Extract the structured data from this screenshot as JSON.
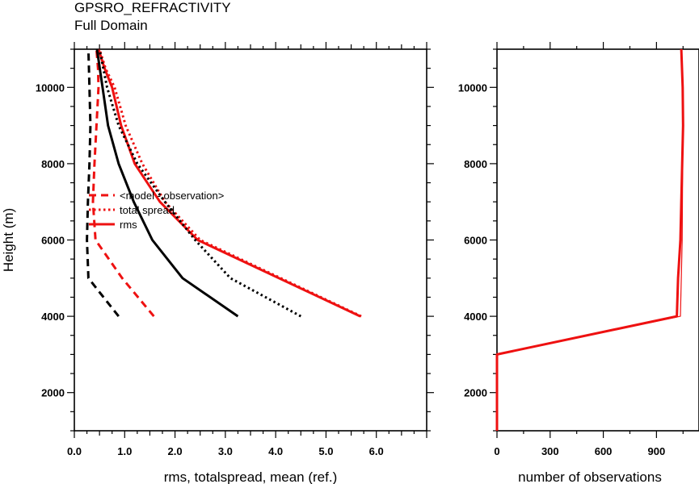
{
  "header": {
    "title": "GPSRO_REFRACTIVITY",
    "subtitle": "Full Domain"
  },
  "colors": {
    "red": "#ee1111",
    "black": "#000000"
  },
  "chart_data": [
    {
      "type": "line",
      "xlabel": "rms, totalspread, mean (ref.)",
      "ylabel": "Height (m)",
      "xlim": [
        0,
        7
      ],
      "ylim": [
        1000,
        11000
      ],
      "x_ticks": [
        "0.0",
        "1.0",
        "2.0",
        "3.0",
        "4.0",
        "5.0",
        "6.0"
      ],
      "y_ticks": [
        "2000",
        "4000",
        "6000",
        "8000",
        "10000"
      ],
      "legend": {
        "placement": "center-left",
        "entries": [
          "<model - observation>",
          "total spread",
          "rms"
        ]
      },
      "series": [
        {
          "name": "<model - observation>",
          "color": "red",
          "style": "dashed",
          "x": [
            1.58,
            0.95,
            0.42,
            0.37,
            0.4,
            0.44,
            0.48,
            0.47,
            0.44
          ],
          "y": [
            4000,
            5000,
            6000,
            7000,
            8000,
            9000,
            10000,
            10500,
            11000
          ]
        },
        {
          "name": "total spread",
          "color": "red",
          "style": "dotted",
          "x": [
            5.7,
            2.5,
            1.8,
            1.35,
            1.02,
            0.8,
            0.62,
            0.5
          ],
          "y": [
            4000,
            6000,
            7000,
            8000,
            9000,
            10000,
            10500,
            11000
          ]
        },
        {
          "name": "rms",
          "color": "red",
          "style": "solid",
          "x": [
            5.68,
            2.45,
            1.7,
            1.2,
            0.93,
            0.75,
            0.6,
            0.48
          ],
          "y": [
            4000,
            6000,
            7000,
            8000,
            9000,
            10000,
            10500,
            11000
          ]
        },
        {
          "color": "black",
          "style": "dashed",
          "x": [
            0.88,
            0.28,
            0.25,
            0.27,
            0.3,
            0.32,
            0.3,
            0.28
          ],
          "y": [
            4000,
            5000,
            6000,
            7000,
            8000,
            9000,
            10000,
            11000
          ]
        },
        {
          "color": "black",
          "style": "dotted",
          "x": [
            4.5,
            3.1,
            2.4,
            1.8,
            1.25,
            0.88,
            0.65,
            0.5
          ],
          "y": [
            4000,
            5000,
            6000,
            7000,
            8000,
            9000,
            10000,
            11000
          ]
        },
        {
          "color": "black",
          "style": "solid",
          "x": [
            3.25,
            2.15,
            1.55,
            1.18,
            0.88,
            0.67,
            0.56,
            0.45
          ],
          "y": [
            4000,
            5000,
            6000,
            7000,
            8000,
            9000,
            10000,
            11000
          ]
        }
      ]
    },
    {
      "type": "line",
      "xlabel": "number of observations",
      "ylabel": "",
      "xlim": [
        0,
        1140
      ],
      "ylim": [
        1000,
        11000
      ],
      "x_ticks": [
        "0",
        "300",
        "600",
        "900"
      ],
      "y_ticks": [
        "2000",
        "4000",
        "6000",
        "8000",
        "10000"
      ],
      "series": [
        {
          "color": "red",
          "style": "solid",
          "weight": "thick",
          "x": [
            0,
            0,
            1015,
            1022,
            1035,
            1045,
            1050,
            1048,
            1040
          ],
          "y": [
            1000,
            3000,
            4000,
            5000,
            6000,
            8000,
            9000,
            10000,
            11000
          ]
        },
        {
          "color": "red",
          "style": "solid",
          "weight": "thin",
          "x": [
            0,
            0,
            1035,
            1040,
            1045,
            1048,
            1050,
            1048,
            1042
          ],
          "y": [
            1000,
            3000,
            4000,
            5000,
            6000,
            8000,
            9000,
            10000,
            11000
          ]
        }
      ]
    }
  ]
}
